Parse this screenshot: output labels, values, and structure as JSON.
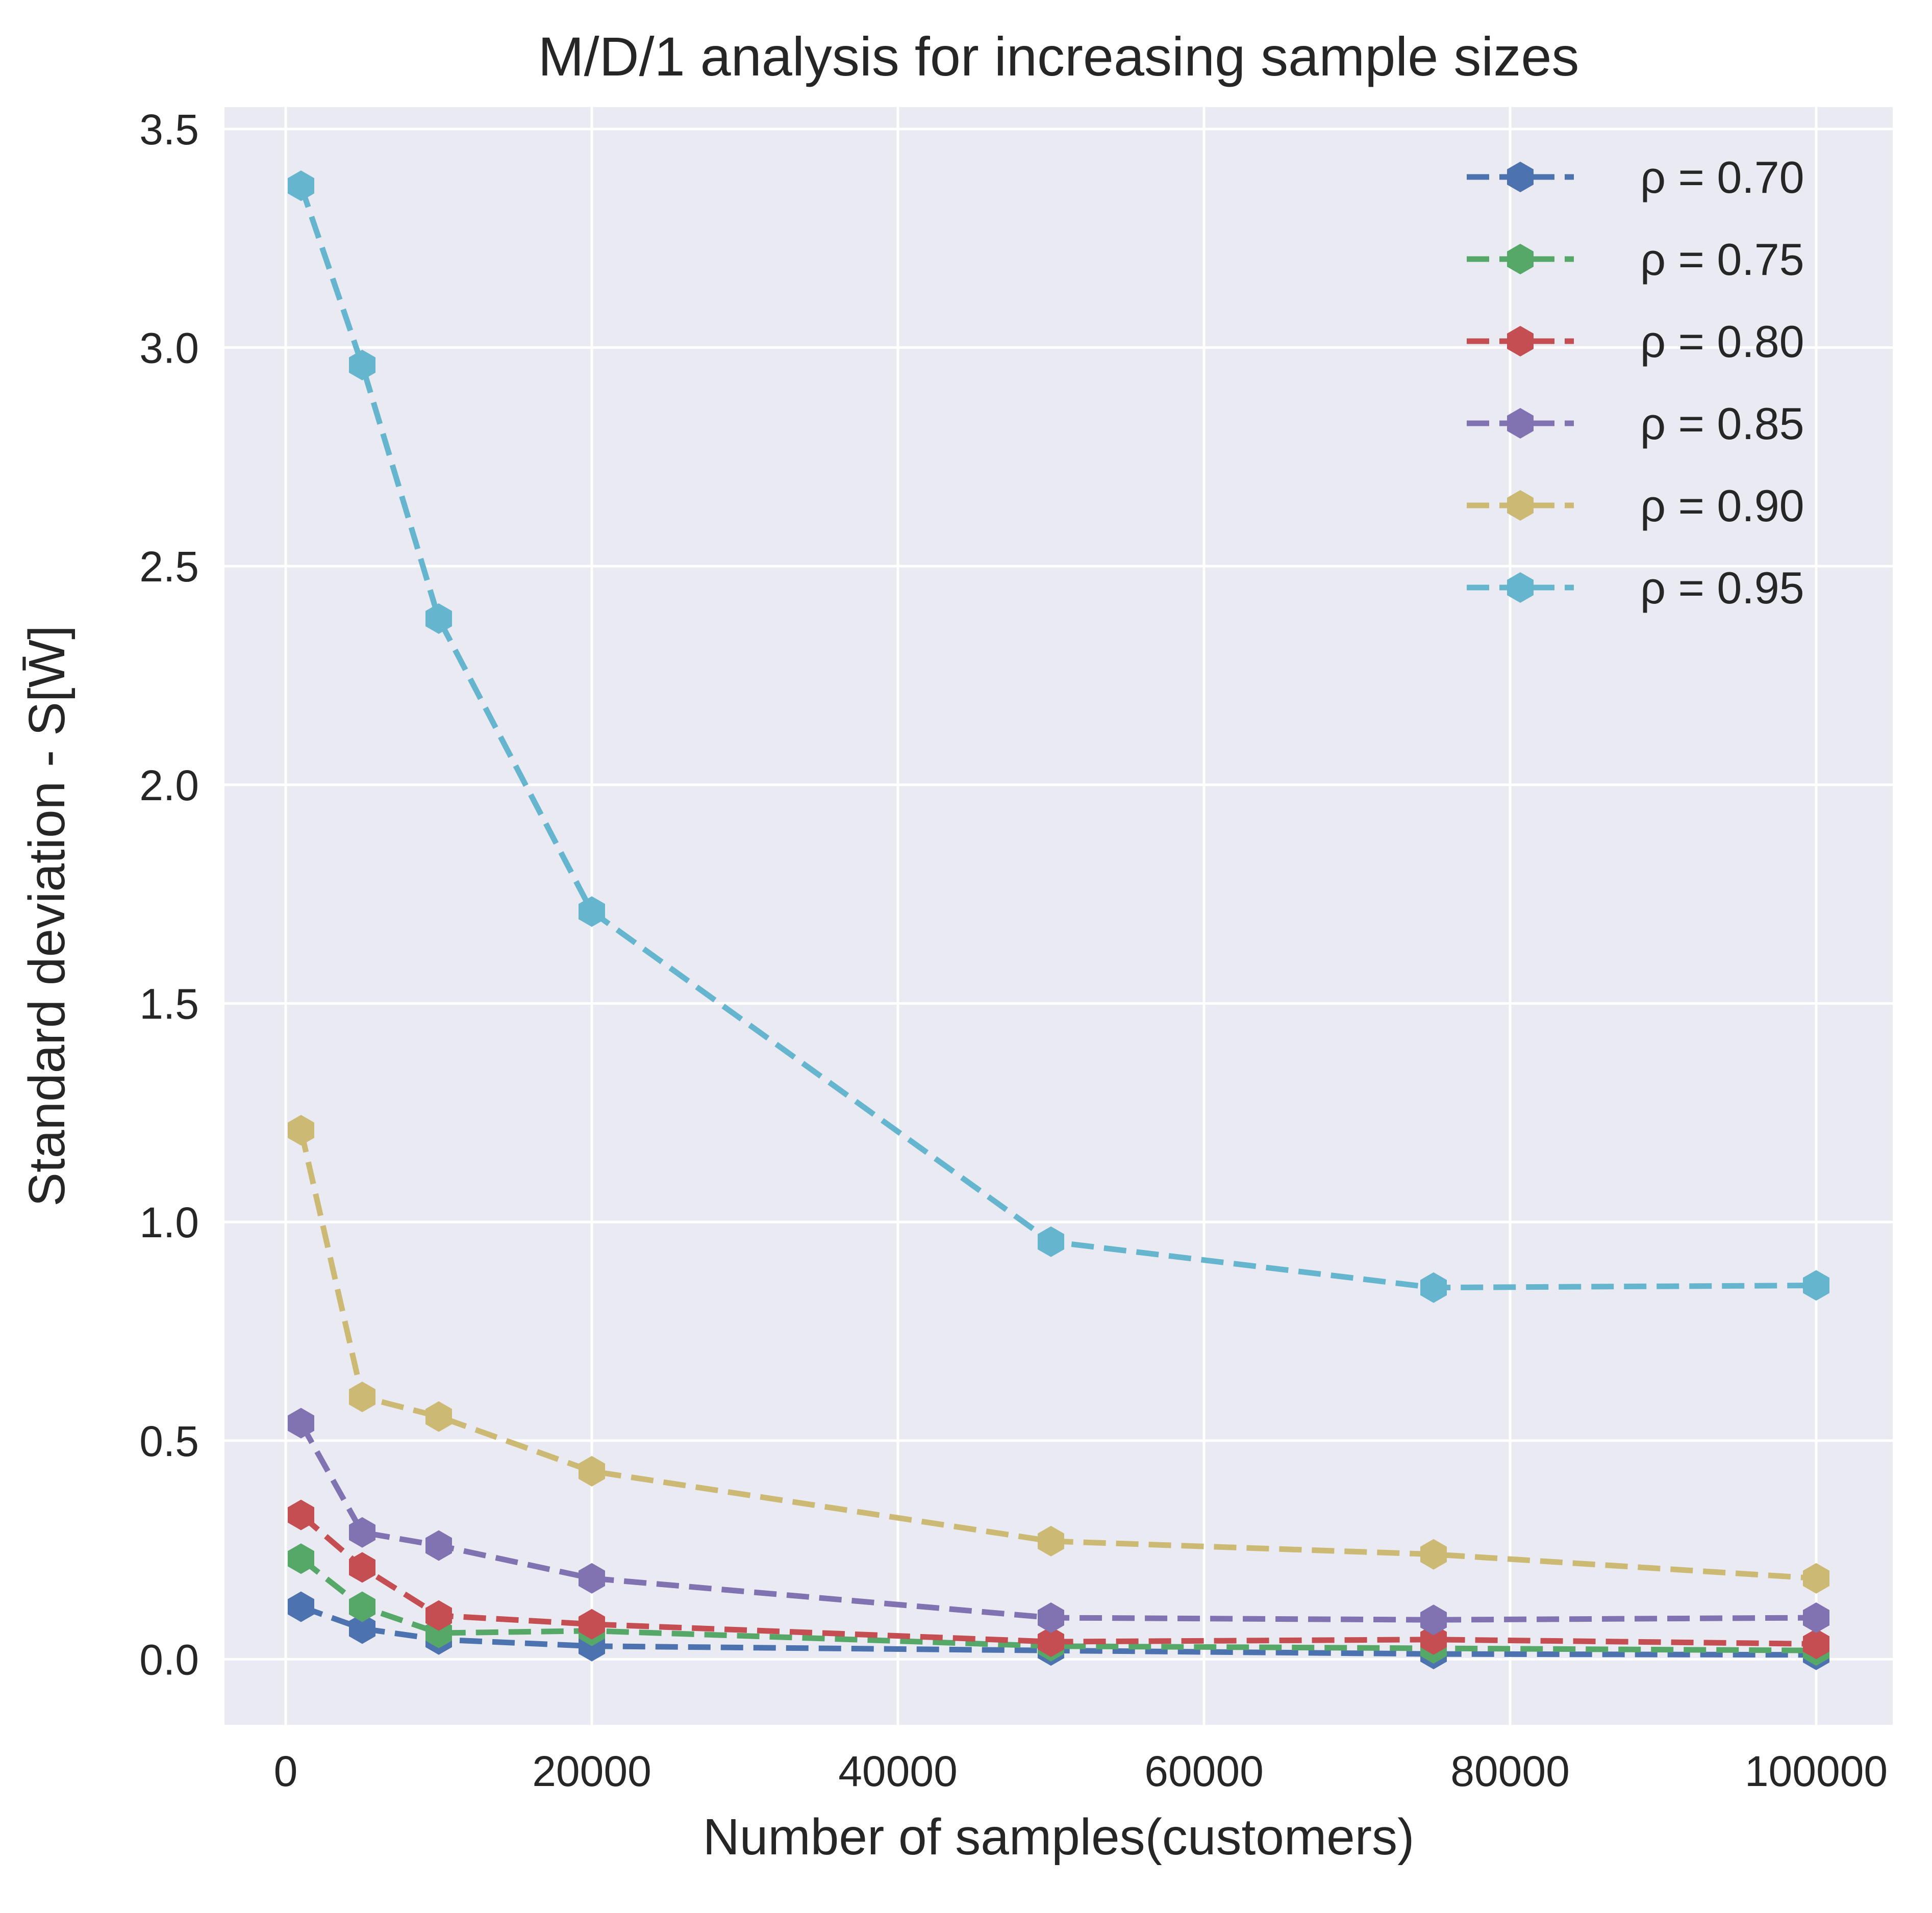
{
  "chart_data": {
    "type": "line",
    "title": "M/D/1 analysis for increasing sample sizes",
    "xlabel": "Number of samples(customers)",
    "ylabel": "Standard deviation - S[W̄]",
    "x": [
      1000,
      5000,
      10000,
      20000,
      50000,
      75000,
      100000
    ],
    "xlim": [
      -4000,
      105000
    ],
    "ylim": [
      -0.15,
      3.55
    ],
    "xticks": [
      0,
      20000,
      40000,
      60000,
      80000,
      100000
    ],
    "xtick_labels": [
      "0",
      "20000",
      "40000",
      "60000",
      "80000",
      "100000"
    ],
    "yticks": [
      0.0,
      0.5,
      1.0,
      1.5,
      2.0,
      2.5,
      3.0,
      3.5
    ],
    "ytick_labels": [
      "0.0",
      "0.5",
      "1.0",
      "1.5",
      "2.0",
      "2.5",
      "3.0",
      "3.5"
    ],
    "grid": true,
    "legend_position": "top-right",
    "background_color": "#eaeaf2",
    "grid_color": "#ffffff",
    "line_style": "dashed",
    "marker": "hexagon",
    "series": [
      {
        "name": "ρ = 0.70",
        "color": "#4c72b0",
        "values": [
          0.12,
          0.07,
          0.045,
          0.03,
          0.02,
          0.012,
          0.01
        ]
      },
      {
        "name": "ρ = 0.75",
        "color": "#55a868",
        "values": [
          0.23,
          0.12,
          0.06,
          0.065,
          0.03,
          0.025,
          0.02
        ]
      },
      {
        "name": "ρ = 0.80",
        "color": "#c44e52",
        "values": [
          0.33,
          0.21,
          0.1,
          0.08,
          0.04,
          0.045,
          0.035
        ]
      },
      {
        "name": "ρ = 0.85",
        "color": "#8172b2",
        "values": [
          0.54,
          0.29,
          0.26,
          0.185,
          0.095,
          0.09,
          0.095
        ]
      },
      {
        "name": "ρ = 0.90",
        "color": "#ccb974",
        "values": [
          1.21,
          0.6,
          0.555,
          0.43,
          0.27,
          0.24,
          0.185
        ]
      },
      {
        "name": "ρ = 0.95",
        "color": "#64b5cd",
        "values": [
          3.37,
          2.96,
          2.38,
          1.71,
          0.955,
          0.85,
          0.855
        ]
      }
    ]
  }
}
